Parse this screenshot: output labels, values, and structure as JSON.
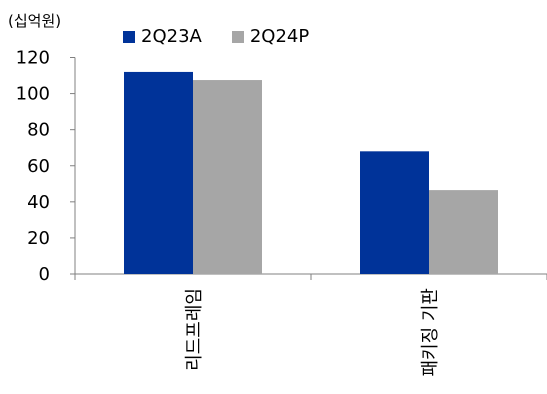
{
  "unit_label": "(십억원)",
  "chart_data": {
    "type": "bar",
    "categories": [
      "리드프레임",
      "패키징 기판"
    ],
    "series": [
      {
        "name": "2Q23A",
        "values": [
          112,
          68
        ],
        "color": "#003399"
      },
      {
        "name": "2Q24P",
        "values": [
          107.5,
          46.5
        ],
        "color": "#a6a6a6"
      }
    ],
    "ylim": [
      0,
      120
    ],
    "yticks": [
      0,
      20,
      40,
      60,
      80,
      100,
      120
    ],
    "title": "",
    "xlabel": "",
    "ylabel": "",
    "grid": false,
    "legend_position": "top"
  }
}
